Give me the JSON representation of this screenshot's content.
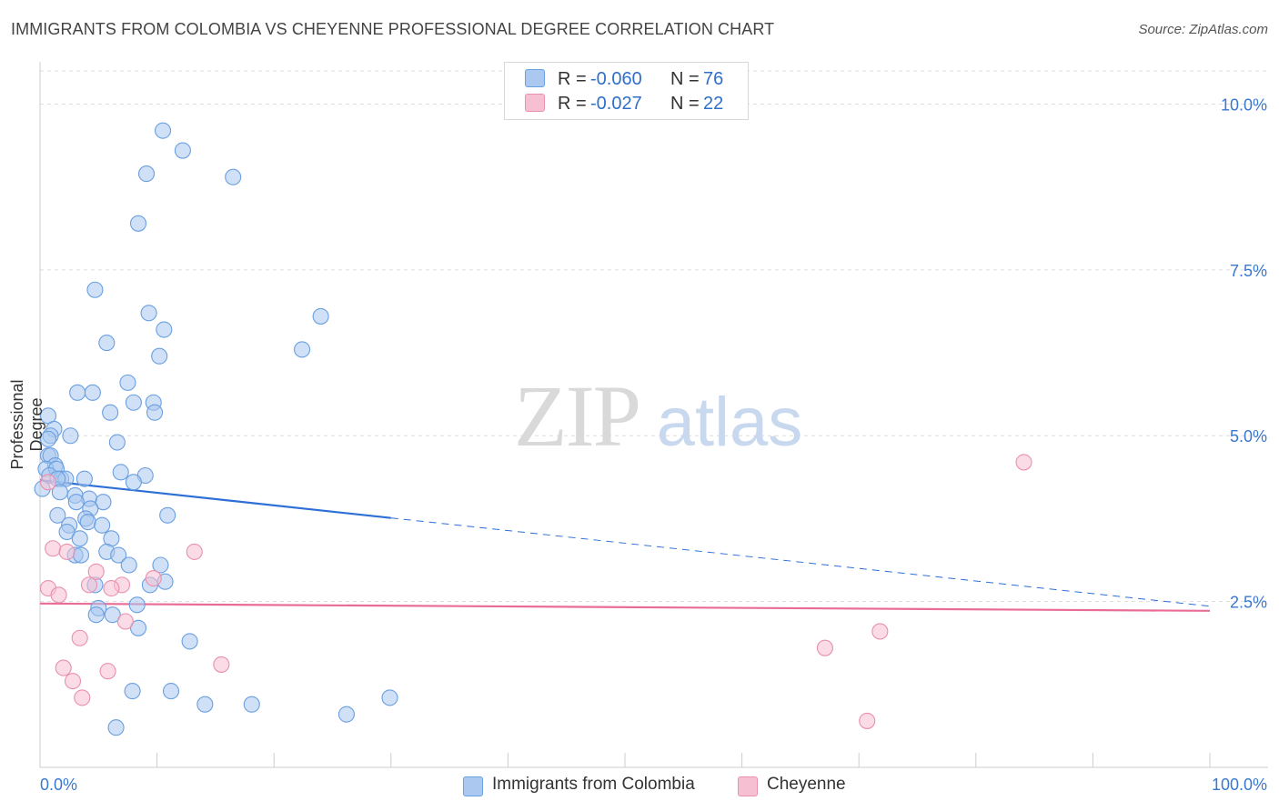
{
  "title": "IMMIGRANTS FROM COLOMBIA VS CHEYENNE PROFESSIONAL DEGREE CORRELATION CHART",
  "source": "Source: ZipAtlas.com",
  "watermark": {
    "zip": "ZIP",
    "atlas": "atlas"
  },
  "colors": {
    "blue_fill": "#aac8f0",
    "blue_stroke": "#6a9fe0",
    "blue_line": "#2d6fd6",
    "pink_fill": "#f7c0d2",
    "pink_stroke": "#e890ae",
    "pink_line": "#e86c96",
    "tick_label": "#3a78d0",
    "grid": "#dddddd"
  },
  "legend": {
    "rows": [
      {
        "r_label": "R =",
        "r_value": "-0.060",
        "n_label": "N =",
        "n_value": "76"
      },
      {
        "r_label": "R =",
        "r_value": "-0.027",
        "n_label": "N =",
        "n_value": "22"
      }
    ]
  },
  "bottom_legend": [
    "Immigrants from Colombia",
    "Cheyenne"
  ],
  "chart_data": {
    "type": "scatter",
    "title": "IMMIGRANTS FROM COLOMBIA VS CHEYENNE PROFESSIONAL DEGREE CORRELATION CHART",
    "xlabel": "",
    "ylabel": "Professional Degree",
    "xlim": [
      0,
      100
    ],
    "ylim": [
      0,
      10.5
    ],
    "x_ticks": [
      "0.0%",
      "100.0%"
    ],
    "y_ticks": [
      {
        "value": 2.5,
        "label": "2.5%"
      },
      {
        "value": 5.0,
        "label": "5.0%"
      },
      {
        "value": 7.5,
        "label": "7.5%"
      },
      {
        "value": 10.0,
        "label": "10.0%"
      }
    ],
    "series": [
      {
        "name": "Immigrants from Colombia",
        "R": -0.06,
        "N": 76,
        "trend": {
          "x0": 0,
          "y0": 4.33,
          "x1": 30,
          "y1": 3.76,
          "dash_x1": 100,
          "dash_y1": 2.43
        },
        "points": [
          [
            10.5,
            9.6
          ],
          [
            12.2,
            9.3
          ],
          [
            9.1,
            8.95
          ],
          [
            16.5,
            8.9
          ],
          [
            8.4,
            8.2
          ],
          [
            4.7,
            7.2
          ],
          [
            9.3,
            6.85
          ],
          [
            24.0,
            6.8
          ],
          [
            10.6,
            6.6
          ],
          [
            5.7,
            6.4
          ],
          [
            22.4,
            6.3
          ],
          [
            10.2,
            6.2
          ],
          [
            7.5,
            5.8
          ],
          [
            3.2,
            5.65
          ],
          [
            4.5,
            5.65
          ],
          [
            8.0,
            5.5
          ],
          [
            9.7,
            5.5
          ],
          [
            6.0,
            5.35
          ],
          [
            9.8,
            5.35
          ],
          [
            0.7,
            5.3
          ],
          [
            1.2,
            5.1
          ],
          [
            0.9,
            5.0
          ],
          [
            2.6,
            5.0
          ],
          [
            0.7,
            4.95
          ],
          [
            6.6,
            4.9
          ],
          [
            0.7,
            4.7
          ],
          [
            0.9,
            4.7
          ],
          [
            1.3,
            4.55
          ],
          [
            0.5,
            4.5
          ],
          [
            1.4,
            4.5
          ],
          [
            6.9,
            4.45
          ],
          [
            9.0,
            4.4
          ],
          [
            0.8,
            4.4
          ],
          [
            1.8,
            4.35
          ],
          [
            2.2,
            4.35
          ],
          [
            3.8,
            4.35
          ],
          [
            8.0,
            4.3
          ],
          [
            1.5,
            4.35
          ],
          [
            1.7,
            4.15
          ],
          [
            3.0,
            4.1
          ],
          [
            4.2,
            4.05
          ],
          [
            3.1,
            4.0
          ],
          [
            5.4,
            4.0
          ],
          [
            4.3,
            3.9
          ],
          [
            1.5,
            3.8
          ],
          [
            10.9,
            3.8
          ],
          [
            3.9,
            3.75
          ],
          [
            4.1,
            3.7
          ],
          [
            2.5,
            3.65
          ],
          [
            5.3,
            3.65
          ],
          [
            2.3,
            3.55
          ],
          [
            3.4,
            3.45
          ],
          [
            6.1,
            3.45
          ],
          [
            3.0,
            3.2
          ],
          [
            3.5,
            3.2
          ],
          [
            5.7,
            3.25
          ],
          [
            6.7,
            3.2
          ],
          [
            7.6,
            3.05
          ],
          [
            10.3,
            3.05
          ],
          [
            4.7,
            2.75
          ],
          [
            10.7,
            2.8
          ],
          [
            9.4,
            2.75
          ],
          [
            8.3,
            2.45
          ],
          [
            5.0,
            2.4
          ],
          [
            4.8,
            2.3
          ],
          [
            6.2,
            2.3
          ],
          [
            8.4,
            2.1
          ],
          [
            12.8,
            1.9
          ],
          [
            7.9,
            1.15
          ],
          [
            11.2,
            1.15
          ],
          [
            14.1,
            0.95
          ],
          [
            18.1,
            0.95
          ],
          [
            29.9,
            1.05
          ],
          [
            26.2,
            0.8
          ],
          [
            6.5,
            0.6
          ],
          [
            0.2,
            4.2
          ]
        ]
      },
      {
        "name": "Cheyenne",
        "R": -0.027,
        "N": 22,
        "trend": {
          "x0": 0,
          "y0": 2.47,
          "x1": 100,
          "y1": 2.36
        },
        "points": [
          [
            84.1,
            4.6
          ],
          [
            0.7,
            4.3
          ],
          [
            1.1,
            3.3
          ],
          [
            2.3,
            3.25
          ],
          [
            13.2,
            3.25
          ],
          [
            4.8,
            2.95
          ],
          [
            9.7,
            2.85
          ],
          [
            0.7,
            2.7
          ],
          [
            4.2,
            2.75
          ],
          [
            7.0,
            2.75
          ],
          [
            6.1,
            2.7
          ],
          [
            1.6,
            2.6
          ],
          [
            7.3,
            2.2
          ],
          [
            3.4,
            1.95
          ],
          [
            71.8,
            2.05
          ],
          [
            67.1,
            1.8
          ],
          [
            15.5,
            1.55
          ],
          [
            2.0,
            1.5
          ],
          [
            5.8,
            1.45
          ],
          [
            2.8,
            1.3
          ],
          [
            3.6,
            1.05
          ],
          [
            70.7,
            0.7
          ]
        ]
      }
    ]
  }
}
